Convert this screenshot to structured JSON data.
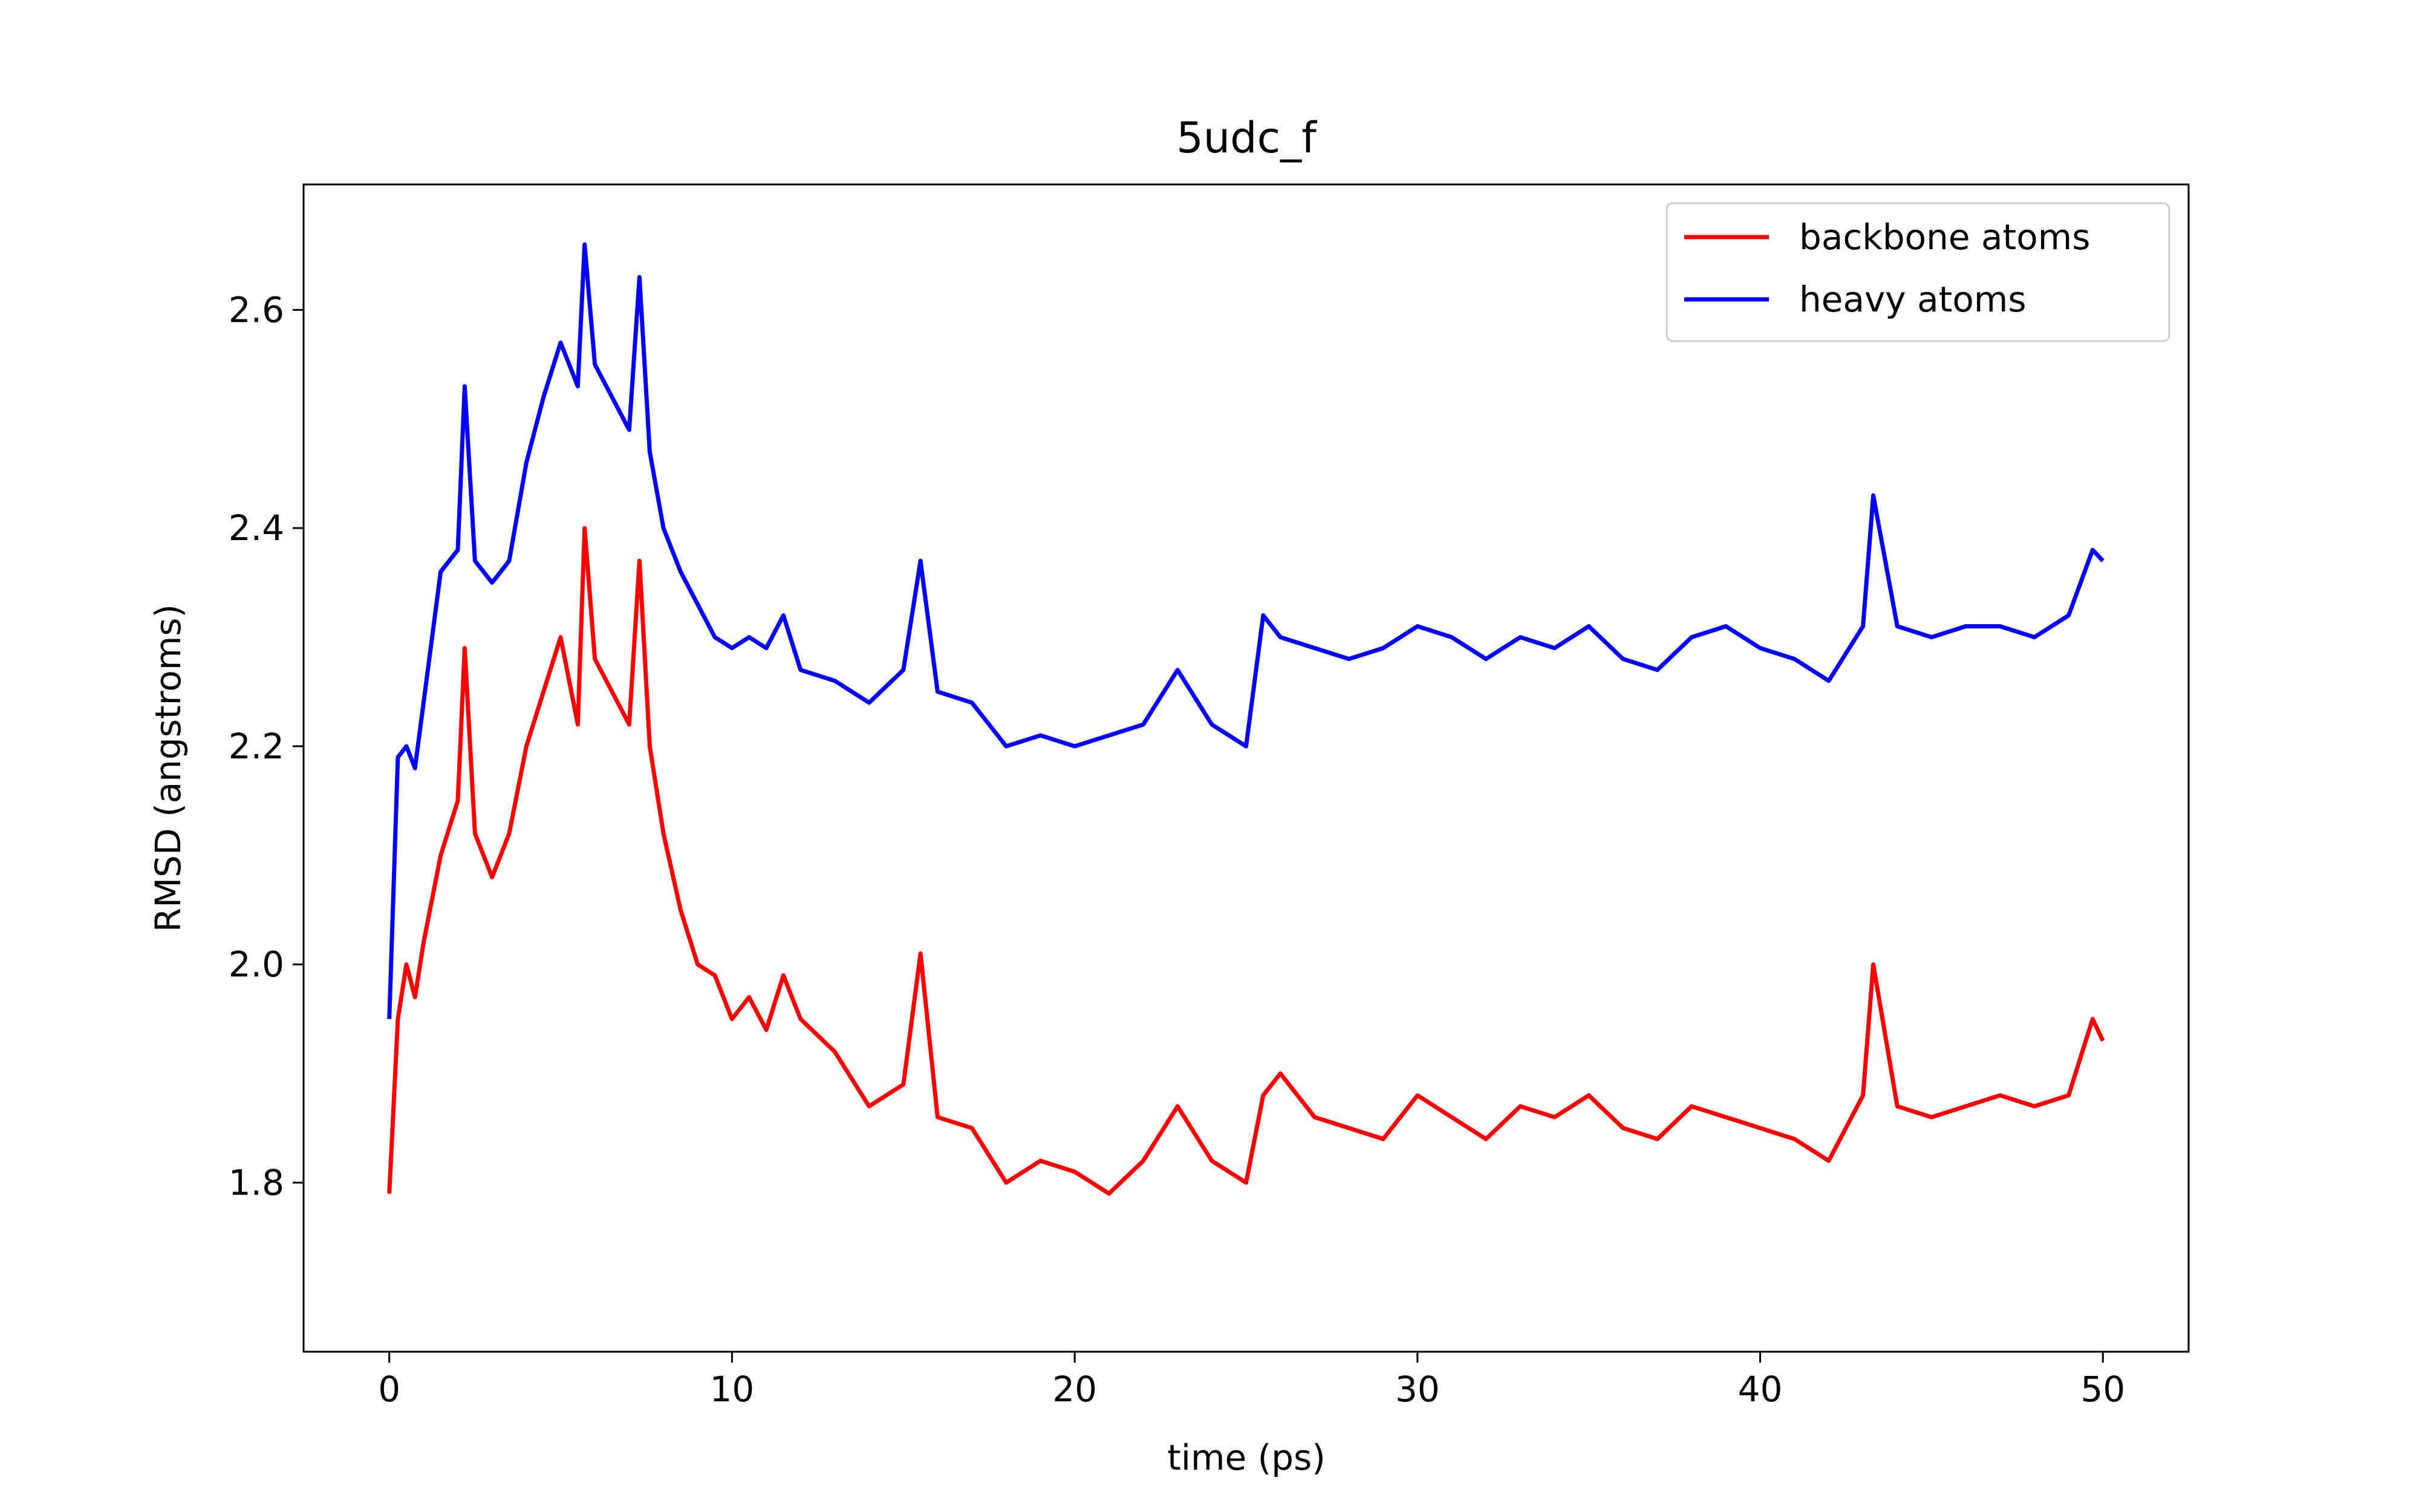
{
  "chart_data": {
    "type": "line",
    "title": "5udc_f",
    "xlabel": "time (ps)",
    "ylabel": "RMSD (angstroms)",
    "xlim": [
      -2.5,
      52.5
    ],
    "ylim": [
      1.645,
      2.715
    ],
    "xticks": [
      0,
      10,
      20,
      30,
      40,
      50
    ],
    "yticks": [
      1.8,
      2.0,
      2.2,
      2.4,
      2.6
    ],
    "xtick_labels": [
      "0",
      "10",
      "20",
      "30",
      "40",
      "50"
    ],
    "ytick_labels": [
      "1.8",
      "2.0",
      "2.2",
      "2.4",
      "2.6"
    ],
    "grid": false,
    "legend_position": "top-right",
    "series": [
      {
        "name": "backbone atoms",
        "color": "#ff0000",
        "x": [
          0,
          0.25,
          0.5,
          0.75,
          1,
          1.5,
          2,
          2.2,
          2.5,
          3,
          3.5,
          4,
          4.5,
          5,
          5.5,
          5.7,
          6,
          6.5,
          7,
          7.3,
          7.6,
          8,
          8.5,
          9,
          9.5,
          10,
          10.5,
          11,
          11.5,
          12,
          13,
          14,
          15,
          15.5,
          16,
          17,
          18,
          19,
          20,
          21,
          22,
          23,
          24,
          25,
          25.5,
          26,
          27,
          28,
          29,
          30,
          31,
          32,
          33,
          34,
          35,
          36,
          37,
          38,
          39,
          40,
          41,
          42,
          43,
          43.3,
          44,
          45,
          46,
          47,
          48,
          49,
          49.7,
          50
        ],
        "y": [
          1.79,
          1.95,
          2.0,
          1.97,
          2.02,
          2.1,
          2.15,
          2.29,
          2.12,
          2.08,
          2.12,
          2.2,
          2.25,
          2.3,
          2.22,
          2.4,
          2.28,
          2.25,
          2.22,
          2.37,
          2.2,
          2.12,
          2.05,
          2.0,
          1.99,
          1.95,
          1.97,
          1.94,
          1.99,
          1.95,
          1.92,
          1.87,
          1.89,
          2.01,
          1.86,
          1.85,
          1.8,
          1.82,
          1.81,
          1.79,
          1.82,
          1.87,
          1.82,
          1.8,
          1.88,
          1.9,
          1.86,
          1.85,
          1.84,
          1.88,
          1.86,
          1.84,
          1.87,
          1.86,
          1.88,
          1.85,
          1.84,
          1.87,
          1.86,
          1.85,
          1.84,
          1.82,
          1.88,
          2.0,
          1.87,
          1.86,
          1.87,
          1.88,
          1.87,
          1.88,
          1.95,
          1.93
        ]
      },
      {
        "name": "heavy atoms",
        "color": "#0000ff",
        "x": [
          0,
          0.25,
          0.5,
          0.75,
          1,
          1.5,
          2,
          2.2,
          2.5,
          3,
          3.5,
          4,
          4.5,
          5,
          5.5,
          5.7,
          6,
          6.5,
          7,
          7.3,
          7.6,
          8,
          8.5,
          9,
          9.5,
          10,
          10.5,
          11,
          11.5,
          12,
          13,
          14,
          15,
          15.5,
          16,
          17,
          18,
          19,
          20,
          21,
          22,
          23,
          24,
          25,
          25.5,
          26,
          27,
          28,
          29,
          30,
          31,
          32,
          33,
          34,
          35,
          36,
          37,
          38,
          39,
          40,
          41,
          42,
          43,
          43.3,
          44,
          45,
          46,
          47,
          48,
          49,
          49.7,
          50
        ],
        "y": [
          1.95,
          2.19,
          2.2,
          2.18,
          2.24,
          2.36,
          2.38,
          2.53,
          2.37,
          2.35,
          2.37,
          2.46,
          2.52,
          2.57,
          2.53,
          2.66,
          2.55,
          2.52,
          2.49,
          2.63,
          2.47,
          2.4,
          2.36,
          2.33,
          2.3,
          2.29,
          2.3,
          2.29,
          2.32,
          2.27,
          2.26,
          2.24,
          2.27,
          2.37,
          2.25,
          2.24,
          2.2,
          2.21,
          2.2,
          2.21,
          2.22,
          2.27,
          2.22,
          2.2,
          2.32,
          2.3,
          2.29,
          2.28,
          2.29,
          2.31,
          2.3,
          2.28,
          2.3,
          2.29,
          2.31,
          2.28,
          2.27,
          2.3,
          2.31,
          2.29,
          2.28,
          2.26,
          2.31,
          2.43,
          2.31,
          2.3,
          2.31,
          2.31,
          2.3,
          2.32,
          2.38,
          2.37
        ]
      }
    ]
  }
}
